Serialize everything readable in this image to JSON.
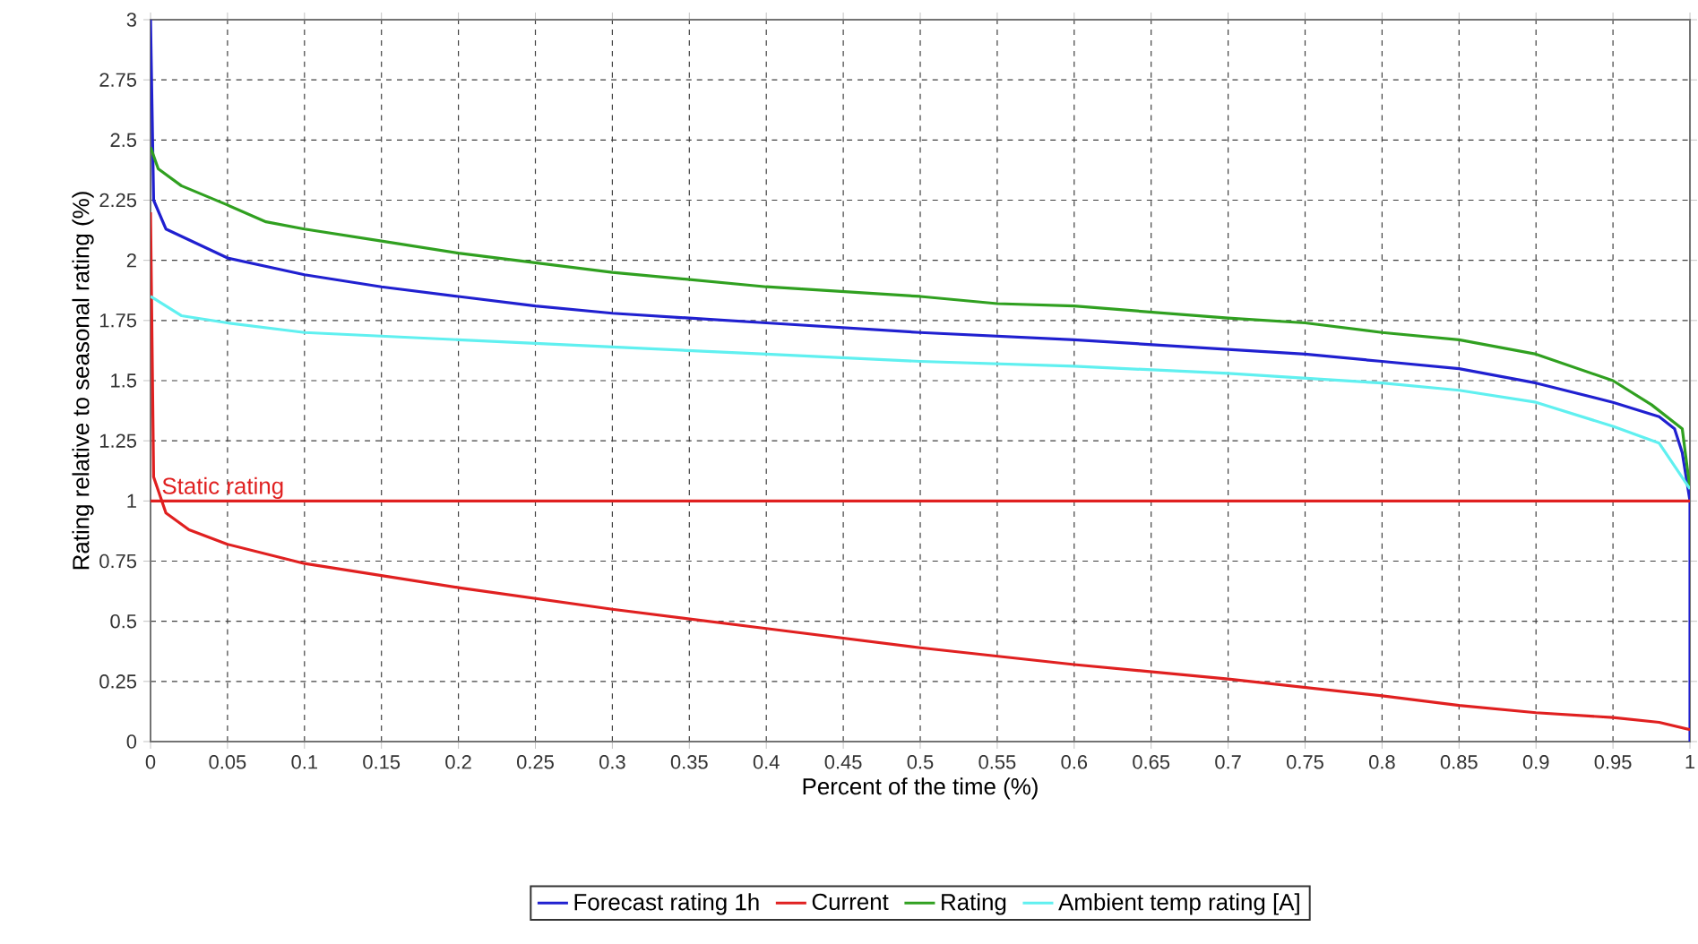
{
  "chart_data": {
    "type": "line",
    "xlabel": "Percent of the time (%)",
    "ylabel": "Rating relative to seasonal rating (%)",
    "xlim": [
      0,
      1
    ],
    "ylim": [
      0,
      3
    ],
    "xticks": [
      0,
      0.05,
      0.1,
      0.15,
      0.2,
      0.25,
      0.3,
      0.35,
      0.4,
      0.45,
      0.5,
      0.55,
      0.6,
      0.65,
      0.7,
      0.75,
      0.8,
      0.85,
      0.9,
      0.95,
      1
    ],
    "yticks": [
      0,
      0.25,
      0.5,
      0.75,
      1,
      1.25,
      1.5,
      1.75,
      2,
      2.25,
      2.5,
      2.75,
      3
    ],
    "grid": true,
    "legend": "bottom",
    "marker": "none",
    "line_style": "solid",
    "ref_lines": [
      {
        "axis": "y",
        "value": 1,
        "label": "Static rating",
        "color": "#e02020"
      }
    ],
    "series": [
      {
        "name": "Forecast rating 1h",
        "color": "#2020d0",
        "x": [
          0,
          0.002,
          0.01,
          0.05,
          0.1,
          0.15,
          0.2,
          0.25,
          0.3,
          0.35,
          0.4,
          0.5,
          0.6,
          0.7,
          0.75,
          0.8,
          0.85,
          0.9,
          0.95,
          0.98,
          0.99,
          0.995,
          1,
          1
        ],
        "values": [
          3,
          2.25,
          2.13,
          2.01,
          1.94,
          1.89,
          1.85,
          1.81,
          1.78,
          1.76,
          1.74,
          1.7,
          1.67,
          1.63,
          1.61,
          1.58,
          1.55,
          1.49,
          1.41,
          1.35,
          1.3,
          1.2,
          1.0,
          0
        ]
      },
      {
        "name": "Current",
        "color": "#e02020",
        "x": [
          0,
          0.002,
          0.01,
          0.025,
          0.05,
          0.1,
          0.15,
          0.2,
          0.3,
          0.4,
          0.5,
          0.6,
          0.7,
          0.8,
          0.85,
          0.9,
          0.95,
          0.98,
          1
        ],
        "values": [
          2.2,
          1.1,
          0.95,
          0.88,
          0.82,
          0.74,
          0.69,
          0.64,
          0.55,
          0.47,
          0.39,
          0.32,
          0.26,
          0.19,
          0.15,
          0.12,
          0.1,
          0.08,
          0.05
        ]
      },
      {
        "name": "Rating",
        "color": "#30a020",
        "x": [
          0,
          0.005,
          0.02,
          0.05,
          0.075,
          0.1,
          0.15,
          0.2,
          0.25,
          0.3,
          0.4,
          0.5,
          0.55,
          0.6,
          0.7,
          0.75,
          0.8,
          0.85,
          0.9,
          0.95,
          0.975,
          0.995,
          1
        ],
        "values": [
          2.47,
          2.38,
          2.31,
          2.23,
          2.16,
          2.13,
          2.08,
          2.03,
          1.99,
          1.95,
          1.89,
          1.85,
          1.82,
          1.81,
          1.76,
          1.74,
          1.7,
          1.67,
          1.61,
          1.5,
          1.4,
          1.3,
          1.05
        ]
      },
      {
        "name": "Ambient temp rating [A]",
        "color": "#60f0f0",
        "x": [
          0,
          0.02,
          0.05,
          0.1,
          0.2,
          0.3,
          0.4,
          0.5,
          0.6,
          0.7,
          0.8,
          0.85,
          0.9,
          0.95,
          0.98,
          1
        ],
        "values": [
          1.85,
          1.77,
          1.74,
          1.7,
          1.67,
          1.64,
          1.61,
          1.58,
          1.56,
          1.53,
          1.49,
          1.46,
          1.41,
          1.31,
          1.24,
          1.05
        ]
      }
    ]
  }
}
